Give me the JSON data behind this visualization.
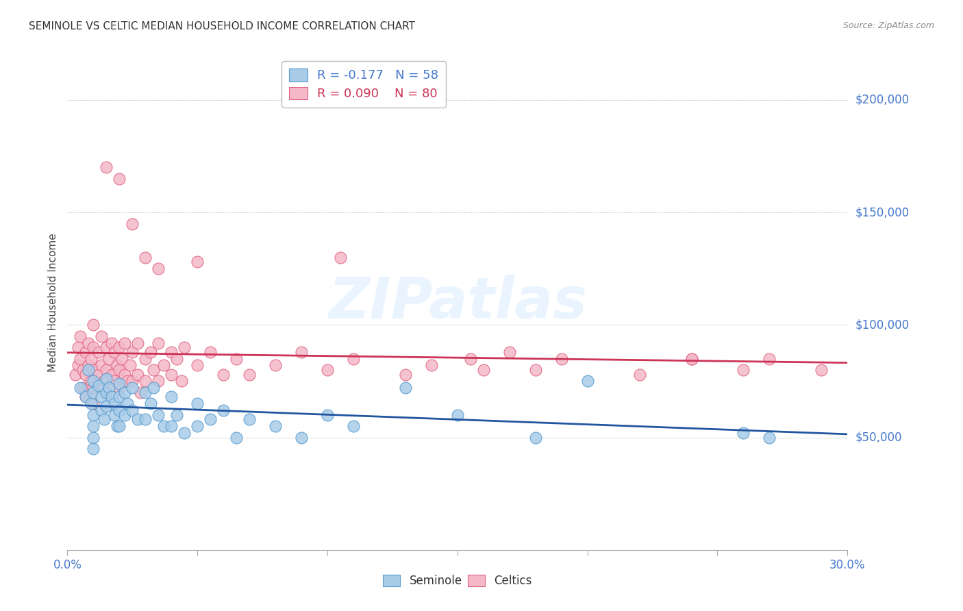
{
  "title": "SEMINOLE VS CELTIC MEDIAN HOUSEHOLD INCOME CORRELATION CHART",
  "source": "Source: ZipAtlas.com",
  "ylabel": "Median Household Income",
  "ytick_labels": [
    "$50,000",
    "$100,000",
    "$150,000",
    "$200,000"
  ],
  "ytick_vals": [
    50000,
    100000,
    150000,
    200000
  ],
  "xlim": [
    0.0,
    0.3
  ],
  "ylim": [
    0,
    220000
  ],
  "seminole_color": "#a8cce8",
  "celtics_color": "#f4b8c8",
  "seminole_edge_color": "#5599cc",
  "celtics_edge_color": "#e06080",
  "seminole_line_color": "#2255a0",
  "celtics_line_color": "#cc3355",
  "watermark_text": "ZIPatlas",
  "seminole_x": [
    0.005,
    0.007,
    0.008,
    0.009,
    0.01,
    0.01,
    0.01,
    0.01,
    0.01,
    0.01,
    0.012,
    0.013,
    0.013,
    0.014,
    0.015,
    0.015,
    0.015,
    0.016,
    0.017,
    0.018,
    0.018,
    0.019,
    0.02,
    0.02,
    0.02,
    0.02,
    0.022,
    0.022,
    0.023,
    0.025,
    0.025,
    0.027,
    0.03,
    0.03,
    0.032,
    0.033,
    0.035,
    0.037,
    0.04,
    0.04,
    0.042,
    0.045,
    0.05,
    0.05,
    0.055,
    0.06,
    0.065,
    0.07,
    0.08,
    0.09,
    0.1,
    0.11,
    0.13,
    0.15,
    0.18,
    0.2,
    0.26,
    0.27
  ],
  "seminole_y": [
    72000,
    68000,
    80000,
    65000,
    75000,
    70000,
    60000,
    55000,
    50000,
    45000,
    73000,
    68000,
    62000,
    58000,
    76000,
    70000,
    64000,
    72000,
    68000,
    65000,
    60000,
    55000,
    74000,
    68000,
    62000,
    55000,
    70000,
    60000,
    65000,
    72000,
    62000,
    58000,
    70000,
    58000,
    65000,
    72000,
    60000,
    55000,
    68000,
    55000,
    60000,
    52000,
    65000,
    55000,
    58000,
    62000,
    50000,
    58000,
    55000,
    50000,
    60000,
    55000,
    72000,
    60000,
    50000,
    75000,
    52000,
    50000
  ],
  "celtics_x": [
    0.003,
    0.004,
    0.004,
    0.005,
    0.005,
    0.006,
    0.006,
    0.007,
    0.007,
    0.007,
    0.008,
    0.008,
    0.008,
    0.009,
    0.009,
    0.01,
    0.01,
    0.01,
    0.01,
    0.01,
    0.012,
    0.012,
    0.013,
    0.013,
    0.014,
    0.015,
    0.015,
    0.015,
    0.016,
    0.017,
    0.017,
    0.018,
    0.018,
    0.019,
    0.02,
    0.02,
    0.02,
    0.021,
    0.022,
    0.022,
    0.023,
    0.024,
    0.025,
    0.025,
    0.027,
    0.027,
    0.028,
    0.03,
    0.03,
    0.032,
    0.033,
    0.035,
    0.035,
    0.037,
    0.04,
    0.04,
    0.042,
    0.044,
    0.045,
    0.05,
    0.055,
    0.06,
    0.065,
    0.07,
    0.08,
    0.09,
    0.1,
    0.11,
    0.13,
    0.14,
    0.155,
    0.16,
    0.17,
    0.18,
    0.19,
    0.22,
    0.24,
    0.26,
    0.27,
    0.29
  ],
  "celtics_y": [
    78000,
    82000,
    90000,
    85000,
    95000,
    80000,
    72000,
    88000,
    78000,
    68000,
    92000,
    82000,
    72000,
    85000,
    75000,
    100000,
    90000,
    80000,
    72000,
    65000,
    88000,
    78000,
    95000,
    82000,
    75000,
    90000,
    80000,
    70000,
    85000,
    92000,
    78000,
    88000,
    75000,
    82000,
    90000,
    80000,
    72000,
    85000,
    78000,
    92000,
    75000,
    82000,
    88000,
    75000,
    92000,
    78000,
    70000,
    85000,
    75000,
    88000,
    80000,
    92000,
    75000,
    82000,
    88000,
    78000,
    85000,
    75000,
    90000,
    82000,
    88000,
    78000,
    85000,
    78000,
    82000,
    88000,
    80000,
    85000,
    78000,
    82000,
    85000,
    80000,
    88000,
    80000,
    85000,
    78000,
    85000,
    80000,
    85000,
    80000
  ],
  "celtics_outliers_x": [
    0.015,
    0.02,
    0.025,
    0.03,
    0.035,
    0.05,
    0.105,
    0.24
  ],
  "celtics_outliers_y": [
    170000,
    165000,
    145000,
    130000,
    125000,
    128000,
    130000,
    85000
  ]
}
